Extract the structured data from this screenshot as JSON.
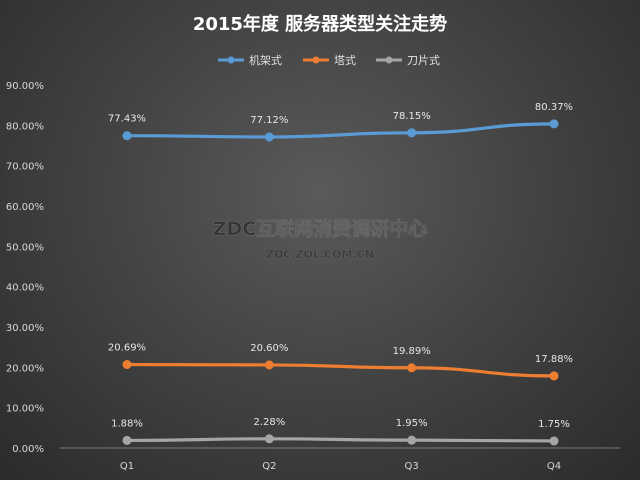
{
  "chart_data": {
    "type": "line",
    "title": "2015年度 服务器类型关注走势",
    "categories": [
      "Q1",
      "Q2",
      "Q3",
      "Q4"
    ],
    "series": [
      {
        "name": "机架式",
        "color": "#5b9bd5",
        "values": [
          77.43,
          77.12,
          78.15,
          80.37
        ],
        "labels": [
          "77.43%",
          "77.12%",
          "78.15%",
          "80.37%"
        ]
      },
      {
        "name": "塔式",
        "color": "#ed7d31",
        "values": [
          20.69,
          20.6,
          19.89,
          17.88
        ],
        "labels": [
          "20.69%",
          "20.60%",
          "19.89%",
          "17.88%"
        ]
      },
      {
        "name": "刀片式",
        "color": "#a5a5a5",
        "values": [
          1.88,
          2.28,
          1.95,
          1.75
        ],
        "labels": [
          "1.88%",
          "2.28%",
          "1.95%",
          "1.75%"
        ]
      }
    ],
    "y_ticks": [
      0,
      10,
      20,
      30,
      40,
      50,
      60,
      70,
      80,
      90
    ],
    "y_tick_labels": [
      "0.00%",
      "10.00%",
      "20.00%",
      "30.00%",
      "40.00%",
      "50.00%",
      "60.00%",
      "70.00%",
      "80.00%",
      "90.00%"
    ],
    "ylim": [
      0,
      90
    ],
    "xlabel": "",
    "ylabel": "",
    "grid": false,
    "legend_position": "top-center"
  },
  "watermark": {
    "line1": "ZDC互联网消费调研中心",
    "line2": "ZDC.ZOL.COM.CN"
  }
}
